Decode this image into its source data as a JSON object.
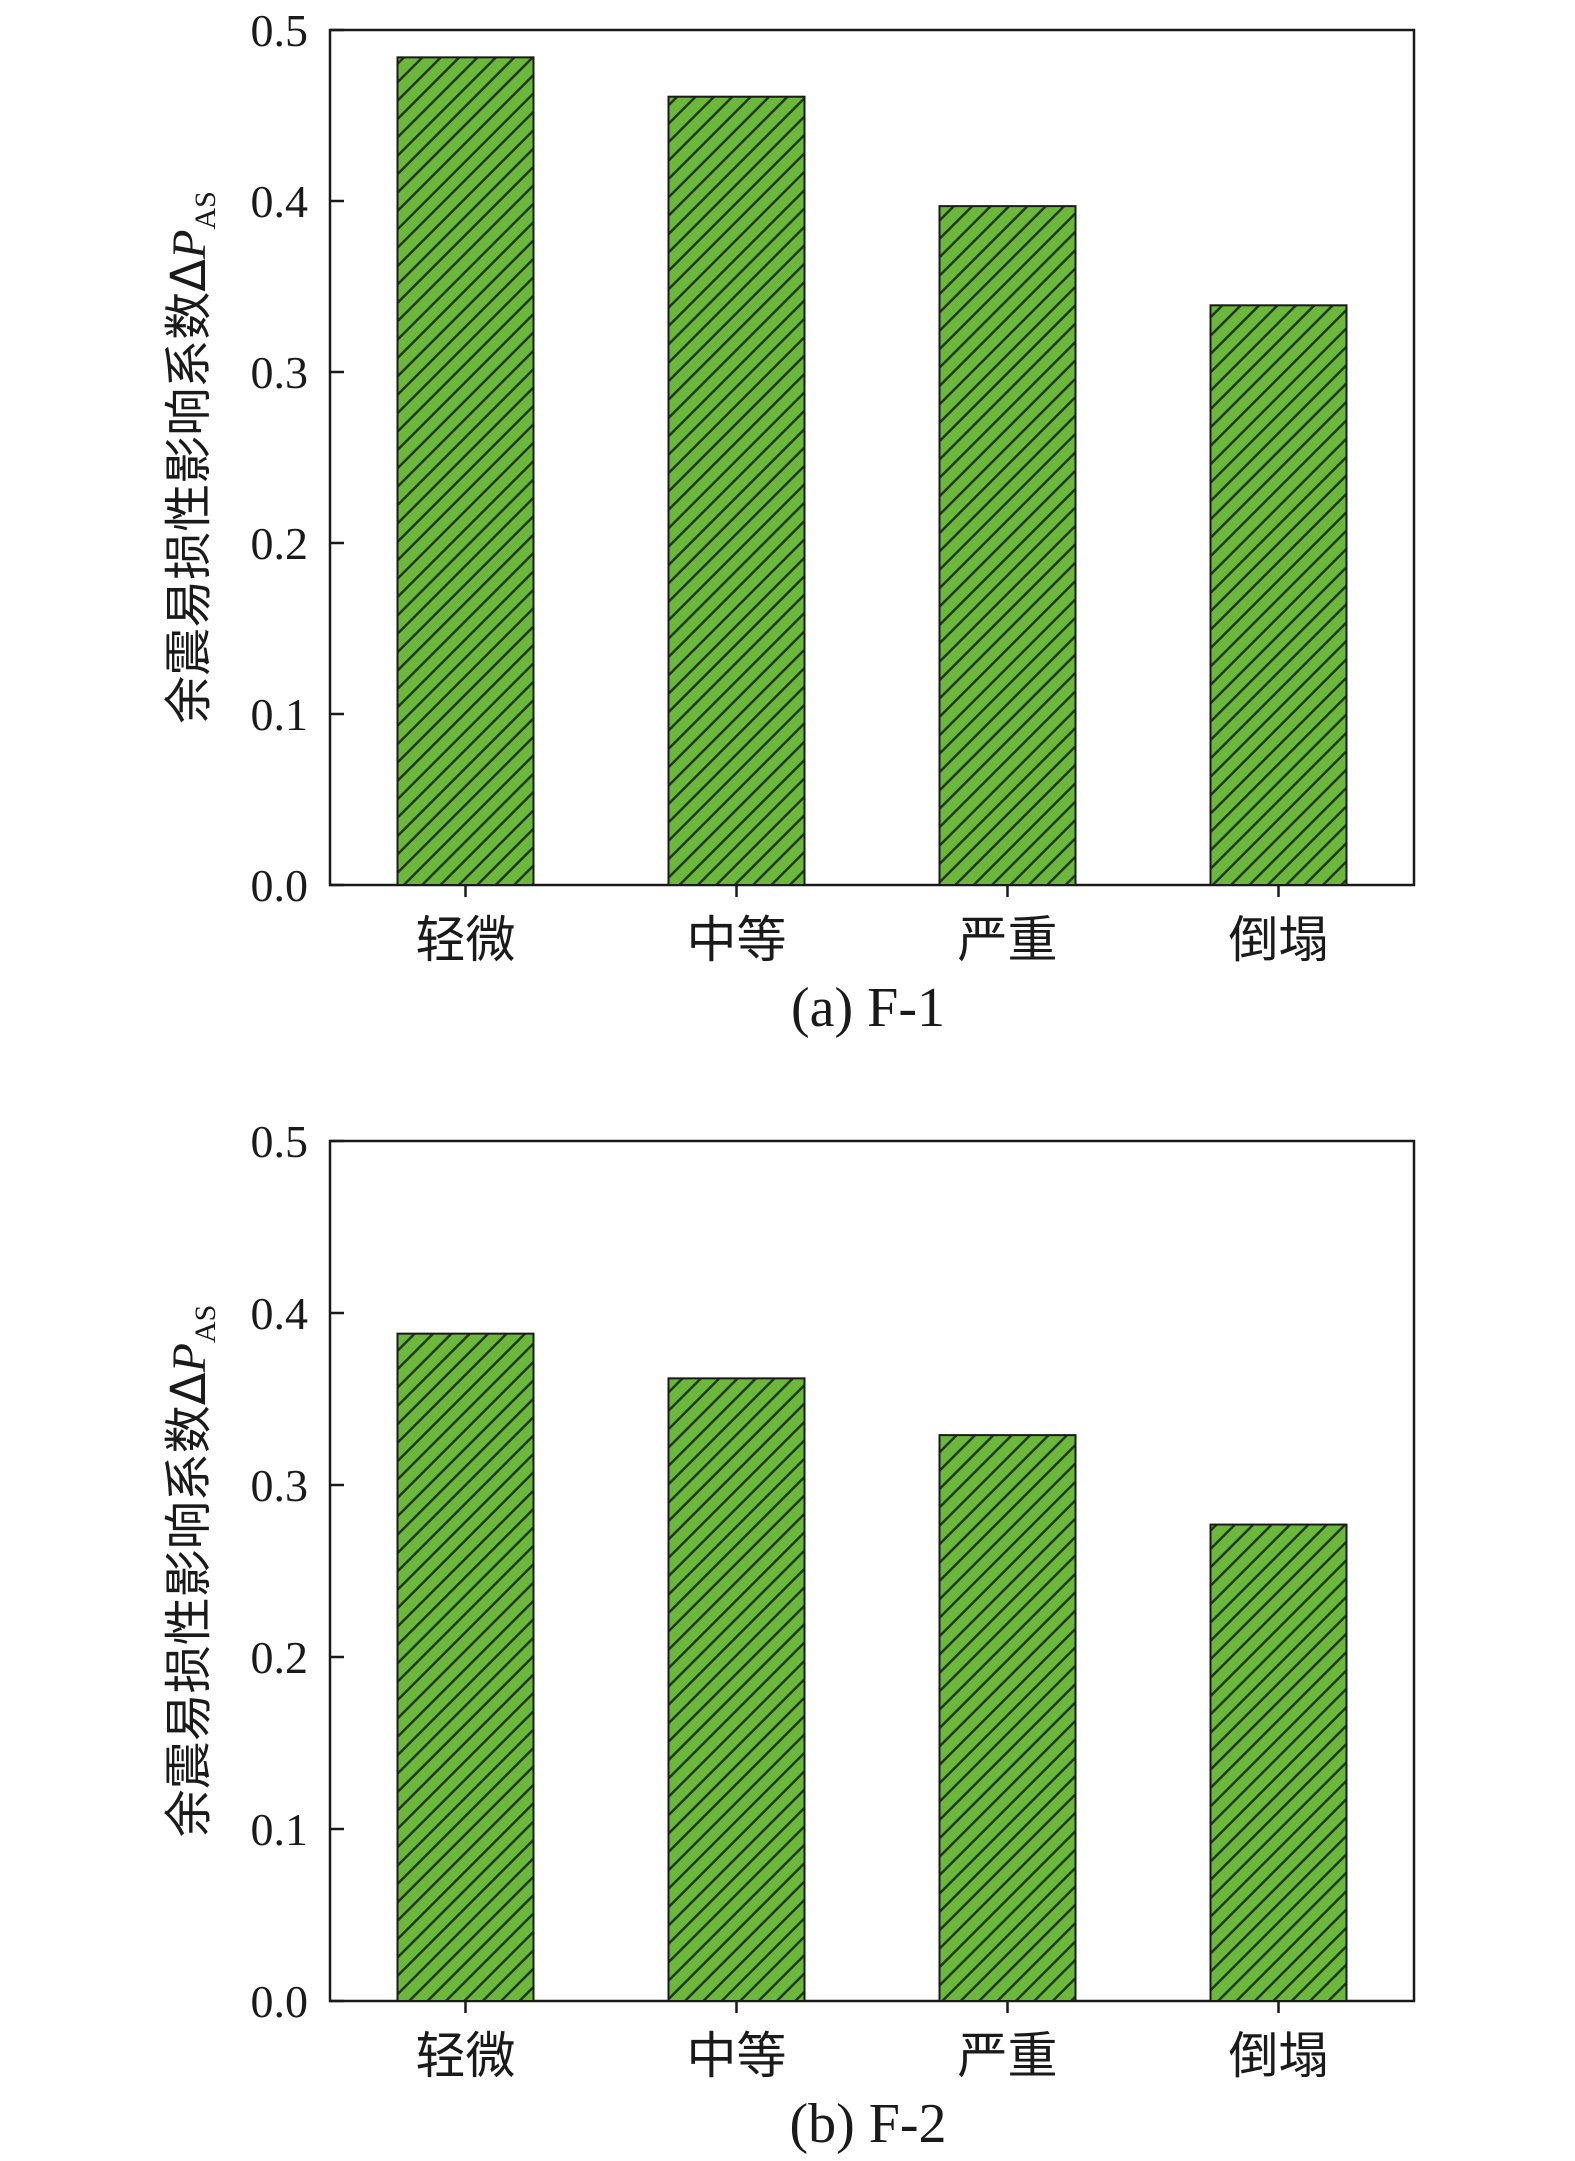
{
  "colors": {
    "bar_fill": "#6bb83c",
    "hatch": "#1f3a12",
    "bar_edge": "#1a1a1a",
    "axis": "#1a1a1a"
  },
  "chart_data": [
    {
      "type": "bar",
      "caption": "(a) F-1",
      "categories": [
        "轻微",
        "中等",
        "严重",
        "倒塌"
      ],
      "values": [
        0.484,
        0.461,
        0.397,
        0.339
      ],
      "ylabel": {
        "text": "余震易损性影响系数Δ",
        "symbol": "P",
        "subscript": "AS"
      },
      "ylim": [
        0,
        0.5
      ],
      "yticks": [
        "0.0",
        "0.1",
        "0.2",
        "0.3",
        "0.4",
        "0.5"
      ],
      "hatch": "diagonal",
      "grid": false
    },
    {
      "type": "bar",
      "caption": "(b) F-2",
      "categories": [
        "轻微",
        "中等",
        "严重",
        "倒塌"
      ],
      "values": [
        0.388,
        0.362,
        0.329,
        0.277
      ],
      "ylabel": {
        "text": "余震易损性影响系数Δ",
        "symbol": "P",
        "subscript": "AS"
      },
      "ylim": [
        0,
        0.5
      ],
      "yticks": [
        "0.0",
        "0.1",
        "0.2",
        "0.3",
        "0.4",
        "0.5"
      ],
      "hatch": "diagonal",
      "grid": false
    }
  ]
}
